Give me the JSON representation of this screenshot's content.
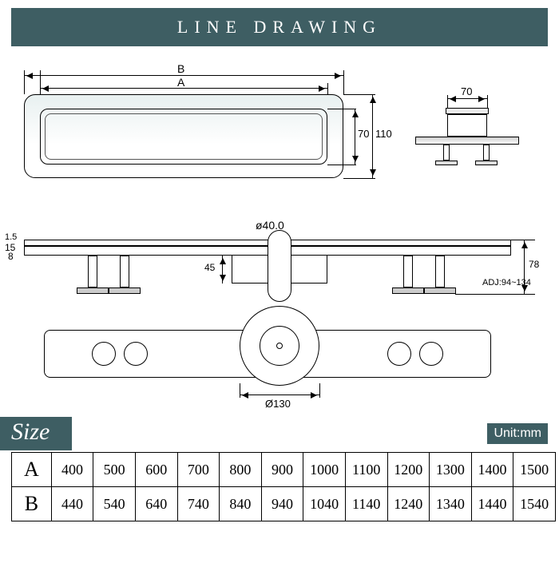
{
  "colors": {
    "banner": "#3e5e63",
    "text_light": "#ffffff",
    "line": "#000000",
    "shade": "#e8f0f0"
  },
  "title": "LINE  DRAWING",
  "top_view": {
    "dim_B_label": "B",
    "dim_A_label": "A",
    "height_outer": "110",
    "height_inner": "70"
  },
  "side_small": {
    "tube_width": "70"
  },
  "front": {
    "top_thickness_1": "1.5",
    "top_thickness_2": "15",
    "top_thickness_3": "8",
    "pipe_dia_label": "ø40.0",
    "drop_depth": "45",
    "overall_height": "78",
    "adj_label": "ADJ:94~134",
    "bottom_dia_label": "Ø130"
  },
  "size_label": "Size",
  "unit_label": "Unit:mm",
  "table": {
    "rows": [
      {
        "h": "A",
        "v": [
          "400",
          "500",
          "600",
          "700",
          "800",
          "900",
          "1000",
          "1100",
          "1200",
          "1300",
          "1400",
          "1500"
        ]
      },
      {
        "h": "B",
        "v": [
          "440",
          "540",
          "640",
          "740",
          "840",
          "940",
          "1040",
          "1140",
          "1240",
          "1340",
          "1440",
          "1540"
        ]
      }
    ]
  }
}
